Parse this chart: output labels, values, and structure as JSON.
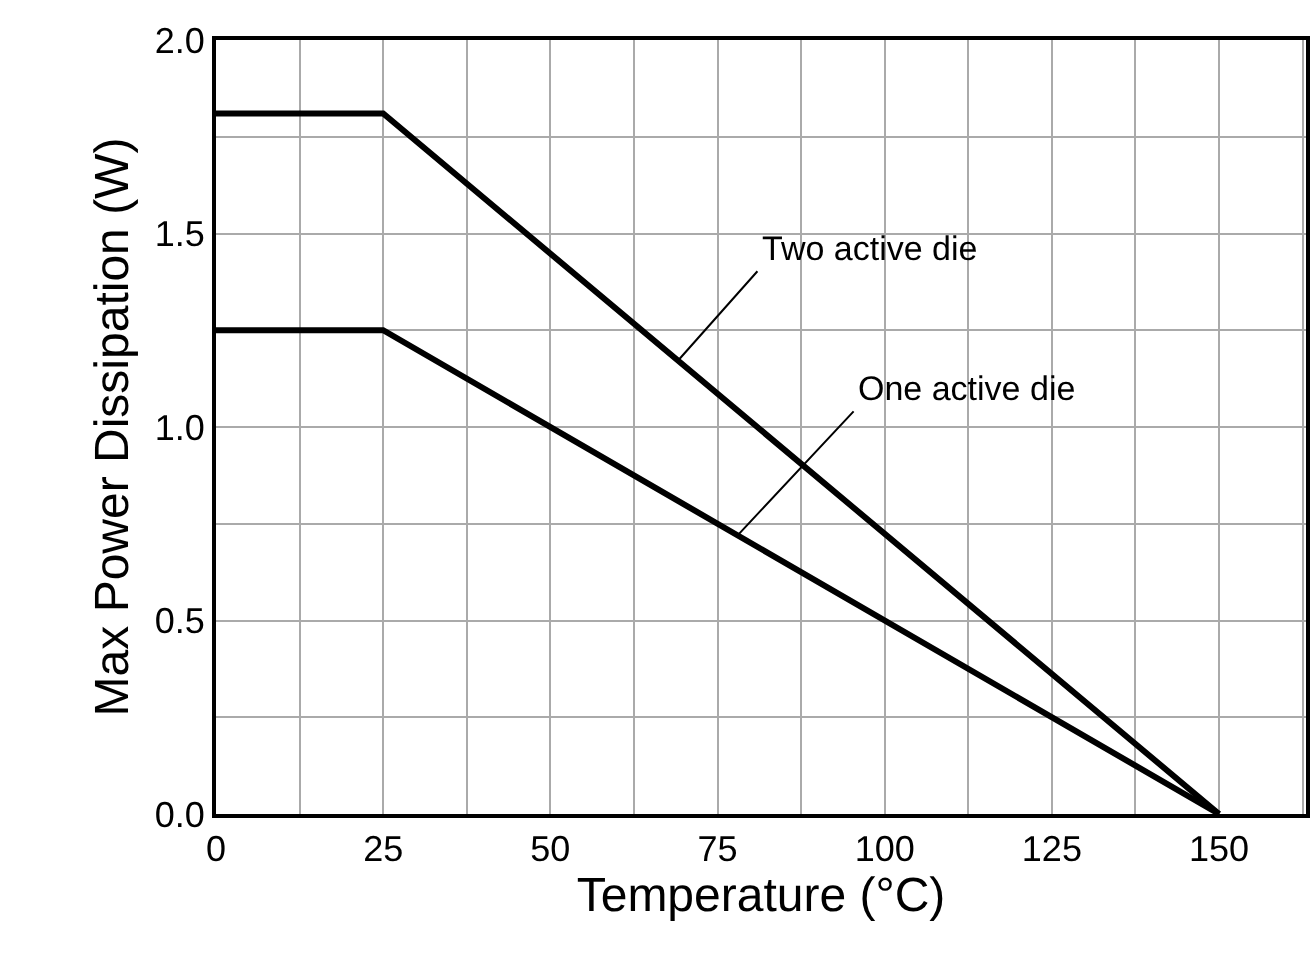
{
  "chart_data": {
    "type": "line",
    "xlabel": "Temperature (°C)",
    "ylabel": "Max Power Dissipation (W)",
    "series": [
      {
        "color": "#000000",
        "x": [
          0,
          25,
          150
        ],
        "values": [
          1.81,
          1.81,
          0
        ]
      },
      {
        "color": "#000000",
        "x": [
          0,
          25,
          150
        ],
        "values": [
          1.25,
          1.25,
          0
        ]
      }
    ],
    "annotations": [
      {
        "text": "Two active die",
        "x": 69,
        "y": 1.17
      },
      {
        "text": "One active die",
        "x": 78,
        "y": 0.72
      }
    ],
    "xlim": [
      0,
      163
    ],
    "ylim": [
      0,
      2
    ],
    "xticks": [
      0,
      {
        "value": 12.5,
        "label": null
      },
      25,
      {
        "value": 37.5,
        "label": null
      },
      50,
      {
        "value": 62.5,
        "label": null
      },
      75,
      {
        "value": 87.5,
        "label": null
      },
      100,
      {
        "value": 112.5,
        "label": null
      },
      125,
      {
        "value": 137.5,
        "label": null
      },
      150,
      {
        "value": 162.5,
        "label": null
      }
    ],
    "yticks": [
      {
        "value": 0,
        "label": "0.0"
      },
      {
        "value": 0.25,
        "label": null
      },
      {
        "value": 0.5,
        "label": "0.5"
      },
      {
        "value": 0.75,
        "label": null
      },
      {
        "value": 1.0,
        "label": "1.0"
      },
      {
        "value": 1.25,
        "label": null
      },
      {
        "value": 1.5,
        "label": "1.5"
      },
      {
        "value": 1.75,
        "label": null
      },
      {
        "value": 2.0,
        "label": "2.0"
      }
    ],
    "grid": true,
    "marker": "none",
    "line_style": "solid"
  }
}
